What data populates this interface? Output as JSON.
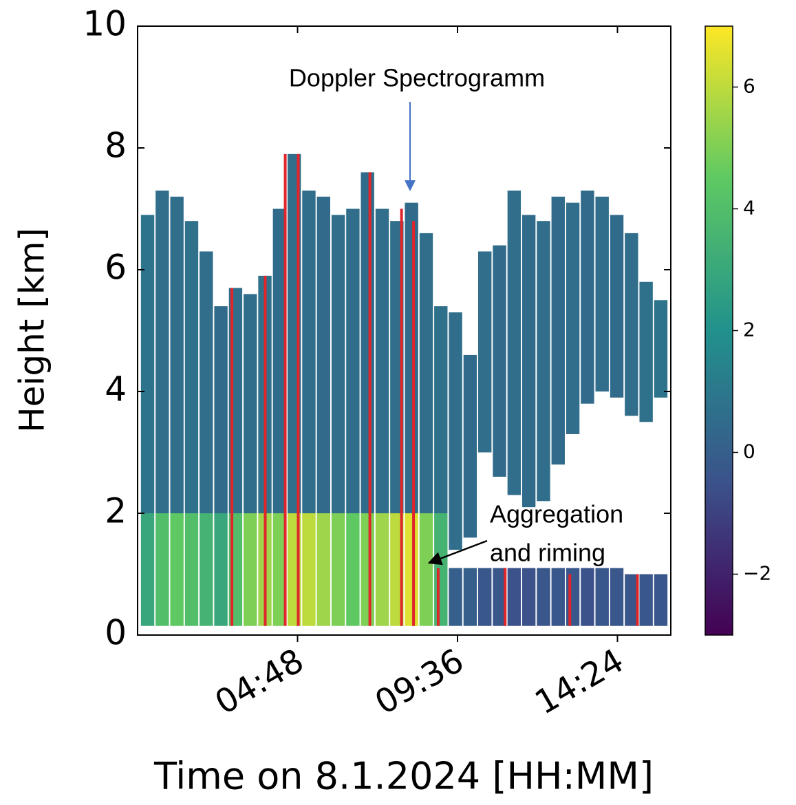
{
  "chart_data": {
    "type": "profiles",
    "xlabel": "Time on 8.1.2024 [HH:MM]",
    "ylabel": "Height [km]",
    "xlim": [
      0,
      16
    ],
    "xticks": [
      {
        "value": 4.8,
        "label": "04:48"
      },
      {
        "value": 9.6,
        "label": "09:36"
      },
      {
        "value": 14.4,
        "label": "14:24"
      }
    ],
    "ylim": [
      0,
      10
    ],
    "yticks": [
      0,
      2,
      4,
      6,
      8,
      10
    ],
    "clim": [
      -3,
      7
    ],
    "cticks": [
      {
        "value": -2,
        "label": "−2"
      },
      0,
      2,
      4,
      6
    ],
    "colormap": [
      "#440154",
      "#3b528b",
      "#21918c",
      "#5ec962",
      "#fde725"
    ],
    "column_width": 0.4,
    "times": [
      0.1,
      0.54,
      0.98,
      1.42,
      1.86,
      2.3,
      2.74,
      3.18,
      3.62,
      4.06,
      4.5,
      4.94,
      5.38,
      5.82,
      6.26,
      6.7,
      7.14,
      7.58,
      8.02,
      8.46,
      8.9,
      9.34,
      9.78,
      10.22,
      10.66,
      11.1,
      11.54,
      11.98,
      12.42,
      12.86,
      13.3,
      13.74,
      14.18,
      14.62,
      15.06,
      15.5
    ],
    "tops": [
      6.9,
      7.3,
      7.2,
      6.8,
      6.3,
      5.4,
      5.7,
      5.6,
      5.9,
      7.0,
      7.9,
      7.3,
      7.2,
      6.9,
      7.0,
      7.6,
      7.0,
      6.8,
      7.1,
      6.6,
      5.4,
      5.3,
      4.6,
      6.3,
      6.4,
      7.3,
      6.9,
      6.8,
      7.2,
      7.1,
      7.3,
      7.2,
      6.9,
      6.6,
      5.8,
      5.5
    ],
    "bases": [
      2.0,
      2.0,
      2.0,
      2.0,
      2.0,
      2.0,
      2.0,
      2.0,
      2.0,
      2.0,
      2.0,
      2.0,
      2.0,
      2.0,
      2.0,
      2.0,
      2.0,
      2.0,
      2.0,
      2.0,
      2.0,
      1.4,
      1.6,
      3.0,
      2.6,
      2.3,
      2.1,
      2.2,
      2.8,
      3.3,
      3.8,
      4.0,
      3.9,
      3.6,
      3.5,
      3.9
    ],
    "values": [
      0.8,
      0.6,
      0.6,
      0.7,
      0.6,
      0.5,
      0.6,
      0.6,
      0.7,
      0.5,
      0.6,
      0.6,
      0.5,
      0.6,
      0.6,
      0.5,
      0.6,
      0.6,
      0.5,
      0.6,
      0.7,
      0.6,
      0.5,
      0.6,
      0.5,
      0.6,
      0.5,
      0.6,
      0.5,
      0.6,
      0.5,
      0.6,
      0.5,
      0.6,
      0.7,
      0.8
    ],
    "low_base": 0.15,
    "low_tops": [
      2.0,
      2.0,
      2.0,
      2.0,
      2.0,
      2.0,
      2.0,
      2.0,
      2.0,
      2.0,
      2.0,
      2.0,
      2.0,
      2.0,
      2.0,
      2.0,
      2.0,
      2.0,
      2.0,
      2.0,
      2.0,
      1.1,
      1.1,
      1.1,
      1.1,
      1.1,
      1.1,
      1.1,
      1.1,
      1.1,
      1.1,
      1.1,
      1.1,
      1.0,
      1.0,
      1.0
    ],
    "low_values": [
      3,
      4,
      4.5,
      4,
      3.5,
      3,
      4,
      5,
      5.5,
      5,
      6,
      6,
      5.5,
      5,
      4.5,
      5,
      5.5,
      6,
      6.5,
      5,
      3.5,
      0,
      0,
      -0.3,
      -0.3,
      -0.5,
      -0.5,
      -0.3,
      -0.3,
      -0.3,
      -0.5,
      -0.3,
      -0.3,
      -0.3,
      -0.3,
      -0.3
    ],
    "red_lines": {
      "color": "#e0262a",
      "x": [
        2.83,
        3.83,
        4.43,
        4.82,
        6.97,
        7.92,
        8.28,
        9.02,
        11.03,
        12.97,
        15.0
      ],
      "tops": [
        5.7,
        5.9,
        7.9,
        7.9,
        7.6,
        7.0,
        6.8,
        1.1,
        1.1,
        1.0,
        1.0
      ]
    },
    "annotations": [
      "Doppler Spectrogramm",
      "Aggregation",
      "and riming"
    ]
  }
}
